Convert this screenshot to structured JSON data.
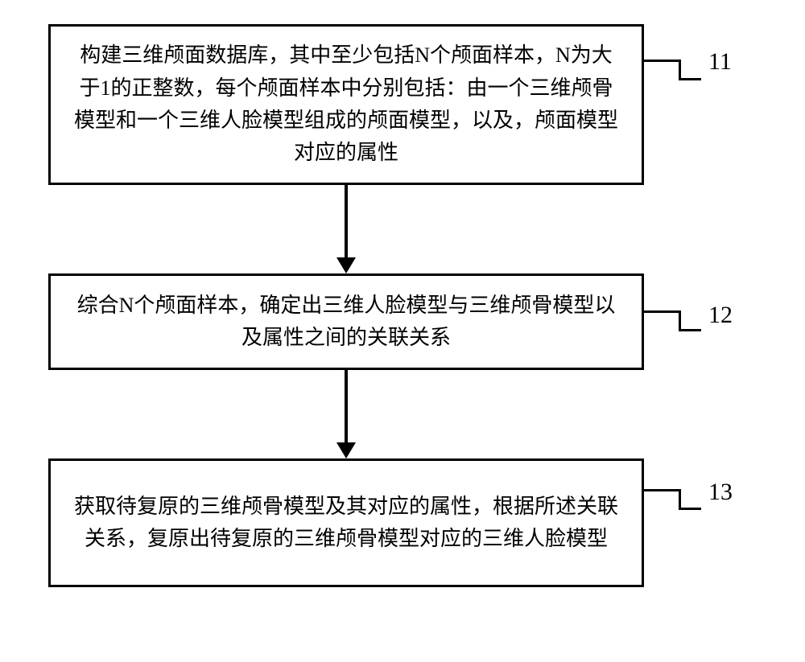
{
  "flow": {
    "type": "flowchart",
    "direction": "vertical",
    "background_color": "#ffffff",
    "box_border_color": "#000000",
    "box_border_width": 3,
    "arrow_color": "#000000",
    "font_family": "SimSun",
    "font_size_box": 26,
    "font_size_label": 30,
    "text_color": "#000000",
    "nodes": [
      {
        "id": "step1",
        "label_id": "11",
        "text": "构建三维颅面数据库，其中至少包括N个颅面样本，N为大于1的正整数，每个颅面样本中分别包括：由一个三维颅骨模型和一个三维人脸模型组成的颅面模型，以及，颅面模型对应的属性"
      },
      {
        "id": "step2",
        "label_id": "12",
        "text": "综合N个颅面样本，确定出三维人脸模型与三维颅骨模型以及属性之间的关联关系"
      },
      {
        "id": "step3",
        "label_id": "13",
        "text": "获取待复原的三维颅骨模型及其对应的属性，根据所述关联关系，复原出待复原的三维颅骨模型对应的三维人脸模型"
      }
    ],
    "edges": [
      {
        "from": "step1",
        "to": "step2"
      },
      {
        "from": "step2",
        "to": "step3"
      }
    ]
  }
}
